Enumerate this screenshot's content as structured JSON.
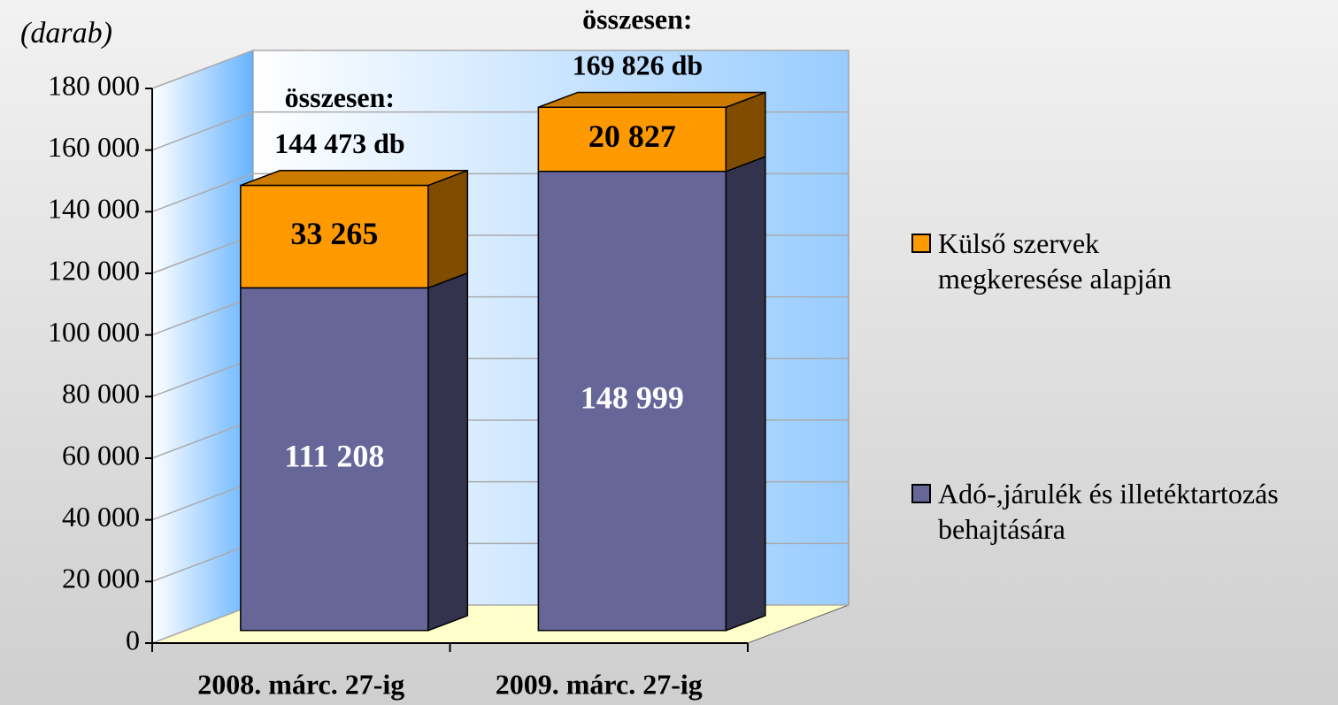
{
  "chart_data": {
    "type": "bar3d_stacked",
    "y_unit_label": "(darab)",
    "categories": [
      "2008. márc. 27-ig",
      "2009. márc. 27-ig"
    ],
    "series": [
      {
        "name": "Adó-,járulék és illetéktartozás behajtására",
        "color": "#666699",
        "values": [
          111208,
          148999
        ],
        "value_labels": [
          "111 208",
          "148 999"
        ]
      },
      {
        "name": "Külső szervek megkeresése alapján",
        "color": "#ff9900",
        "values": [
          33265,
          20827
        ],
        "value_labels": [
          "33 265",
          "20 827"
        ]
      }
    ],
    "annotations": [
      [
        "összesen:",
        "144 473 db"
      ],
      [
        "összesen:",
        "169 826 db"
      ]
    ],
    "ylim": [
      0,
      180000
    ],
    "yticks": [
      0,
      {
        "value": 20000,
        "label": "20 000"
      },
      {
        "value": 40000,
        "label": "40 000"
      },
      {
        "value": 60000,
        "label": "60 000"
      },
      {
        "value": 80000,
        "label": "80 000"
      },
      {
        "value": 100000,
        "label": "100 000"
      },
      {
        "value": 120000,
        "label": "120 000"
      },
      {
        "value": 140000,
        "label": "140 000"
      },
      {
        "value": 160000,
        "label": "160 000"
      },
      {
        "value": 180000,
        "label": "180 000"
      }
    ],
    "grid": true
  }
}
